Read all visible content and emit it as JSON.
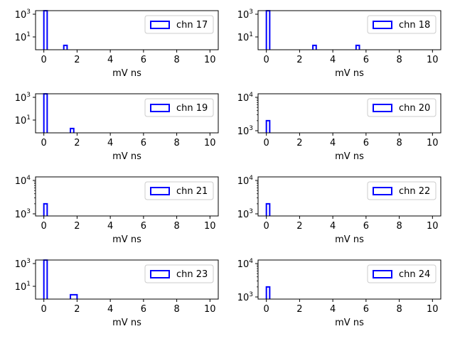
{
  "chart_data": [
    {
      "type": "bar",
      "legend": "chn 17",
      "xlabel": "mV ns",
      "xlim": [
        -0.5,
        10.5
      ],
      "yscale": "log",
      "ytick_labels": [
        {
          "base": "10",
          "exp": "3"
        },
        {
          "base": "10",
          "exp": "1"
        }
      ],
      "xticks": [
        "0",
        "2",
        "4",
        "6",
        "8",
        "10"
      ],
      "bins": [
        {
          "x0": 0,
          "x1": 0.2,
          "count": 2000
        },
        {
          "x0": 1.2,
          "x1": 1.4,
          "count": 1.8
        }
      ]
    },
    {
      "type": "bar",
      "legend": "chn 18",
      "xlabel": "mV ns",
      "xlim": [
        -0.5,
        10.5
      ],
      "yscale": "log",
      "ytick_labels": [
        {
          "base": "10",
          "exp": "3"
        },
        {
          "base": "10",
          "exp": "1"
        }
      ],
      "xticks": [
        "0",
        "2",
        "4",
        "6",
        "8",
        "10"
      ],
      "bins": [
        {
          "x0": 0,
          "x1": 0.2,
          "count": 2000
        },
        {
          "x0": 2.8,
          "x1": 3.0,
          "count": 1.8
        },
        {
          "x0": 5.4,
          "x1": 5.6,
          "count": 1.8
        }
      ]
    },
    {
      "type": "bar",
      "legend": "chn 19",
      "xlabel": "mV ns",
      "xlim": [
        -0.5,
        10.5
      ],
      "yscale": "log",
      "ytick_labels": [
        {
          "base": "10",
          "exp": "3"
        },
        {
          "base": "10",
          "exp": "1"
        }
      ],
      "xticks": [
        "0",
        "2",
        "4",
        "6",
        "8",
        "10"
      ],
      "bins": [
        {
          "x0": 0,
          "x1": 0.2,
          "count": 2000
        },
        {
          "x0": 1.6,
          "x1": 1.8,
          "count": 1.8
        }
      ]
    },
    {
      "type": "bar",
      "legend": "chn 20",
      "xlabel": "mV ns",
      "xlim": [
        -0.5,
        10.5
      ],
      "yscale": "log",
      "ytick_labels": [
        {
          "base": "10",
          "exp": "4"
        },
        {
          "base": "10",
          "exp": "3"
        }
      ],
      "xticks": [
        "0",
        "2",
        "4",
        "6",
        "8",
        "10"
      ],
      "bins": [
        {
          "x0": 0,
          "x1": 0.2,
          "count": 2000
        }
      ]
    },
    {
      "type": "bar",
      "legend": "chn 21",
      "xlabel": "mV ns",
      "xlim": [
        -0.5,
        10.5
      ],
      "yscale": "log",
      "ytick_labels": [
        {
          "base": "10",
          "exp": "4"
        },
        {
          "base": "10",
          "exp": "3"
        }
      ],
      "xticks": [
        "0",
        "2",
        "4",
        "6",
        "8",
        "10"
      ],
      "bins": [
        {
          "x0": 0,
          "x1": 0.2,
          "count": 2000
        }
      ]
    },
    {
      "type": "bar",
      "legend": "chn 22",
      "xlabel": "mV ns",
      "xlim": [
        -0.5,
        10.5
      ],
      "yscale": "log",
      "ytick_labels": [
        {
          "base": "10",
          "exp": "4"
        },
        {
          "base": "10",
          "exp": "3"
        }
      ],
      "xticks": [
        "0",
        "2",
        "4",
        "6",
        "8",
        "10"
      ],
      "bins": [
        {
          "x0": 0,
          "x1": 0.2,
          "count": 2000
        }
      ]
    },
    {
      "type": "bar",
      "legend": "chn 23",
      "xlabel": "mV ns",
      "xlim": [
        -0.5,
        10.5
      ],
      "yscale": "log",
      "ytick_labels": [
        {
          "base": "10",
          "exp": "3"
        },
        {
          "base": "10",
          "exp": "1"
        }
      ],
      "xticks": [
        "0",
        "2",
        "4",
        "6",
        "8",
        "10"
      ],
      "bins": [
        {
          "x0": 0,
          "x1": 0.2,
          "count": 2000
        },
        {
          "x0": 1.6,
          "x1": 2.0,
          "count": 1.8
        }
      ]
    },
    {
      "type": "bar",
      "legend": "chn 24",
      "xlabel": "mV ns",
      "xlim": [
        -0.5,
        10.5
      ],
      "yscale": "log",
      "ytick_labels": [
        {
          "base": "10",
          "exp": "4"
        },
        {
          "base": "10",
          "exp": "3"
        }
      ],
      "xticks": [
        "0",
        "2",
        "4",
        "6",
        "8",
        "10"
      ],
      "bins": [
        {
          "x0": 0,
          "x1": 0.2,
          "count": 2000
        }
      ]
    }
  ],
  "colors": {
    "series": "#0000ff",
    "axes": "#000000",
    "legend_border": "#cccccc"
  }
}
